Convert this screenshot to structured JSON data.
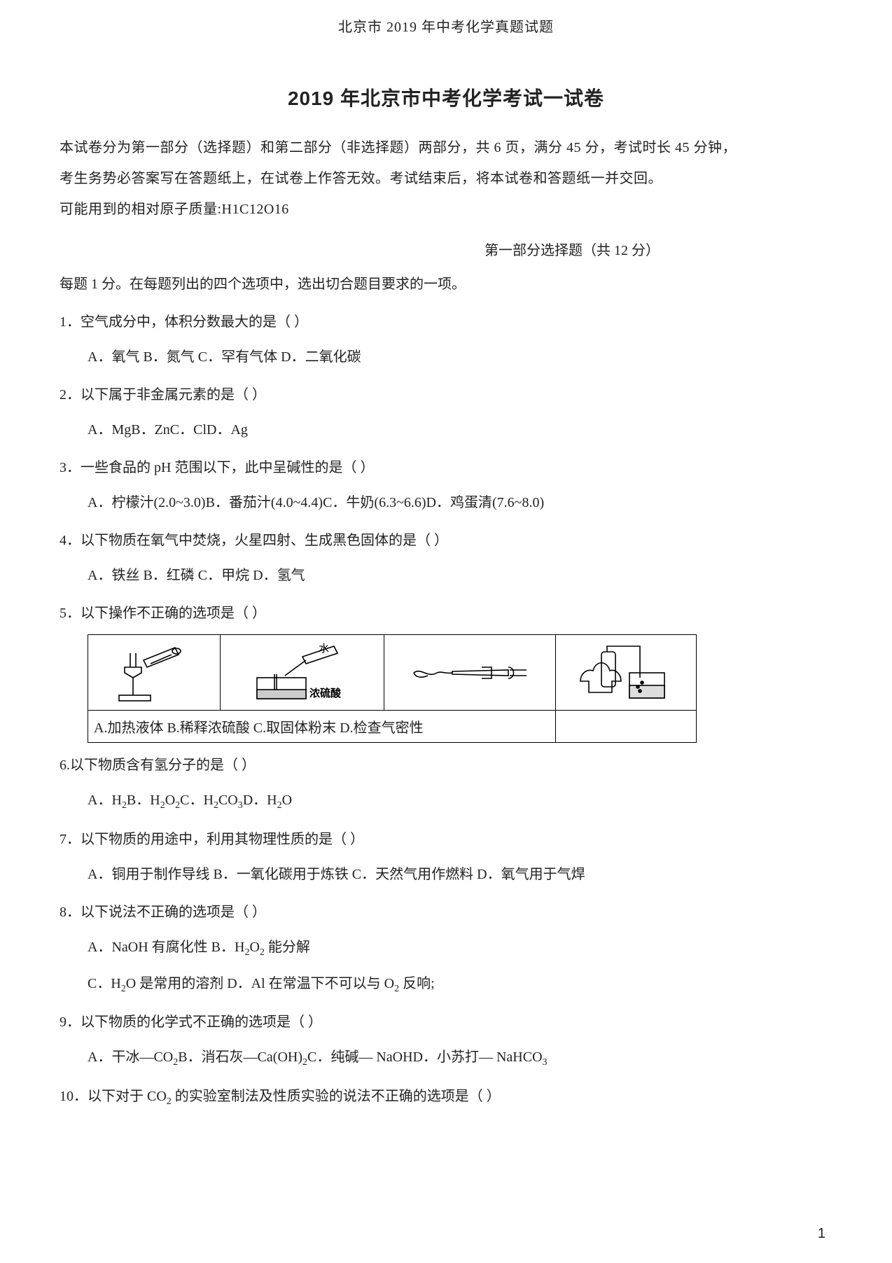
{
  "header": "北京市 2019 年中考化学真题试题",
  "title": "2019 年北京市中考化学考试一试卷",
  "intro": {
    "line1": "本试卷分为第一部分（选择题）和第二部分（非选择题）两部分，共 6 页，满分 45 分，考试时长 45 分钟，",
    "line2": "考生务势必答案写在答题纸上，在试卷上作答无效。考试结束后，将本试卷和答题纸一并交回。",
    "line3": "可能用到的相对原子质量:H1C12O16"
  },
  "section_heading": "第一部分选择题（共 12 分）",
  "instruction": "每题 1 分。在每题列出的四个选项中，选出切合题目要求的一项。",
  "questions": {
    "q1": {
      "text": "1．空气成分中，体积分数最大的是（ ）",
      "opts": "A．氧气 B．氮气 C．罕有气体 D．二氧化碳"
    },
    "q2": {
      "text": "2．以下属于非金属元素的是（ ）",
      "opts": "A．MgB．ZnC．ClD．Ag"
    },
    "q3": {
      "text": "3．一些食品的 pH 范围以下，此中呈碱性的是（ ）",
      "opts": "A．柠檬汁(2.0~3.0)B．番茄汁(4.0~4.4)C．牛奶(6.3~6.6)D．鸡蛋清(7.6~8.0)"
    },
    "q4": {
      "text": "4．以下物质在氧气中焚烧，火星四射、生成黑色固体的是（ ）",
      "opts": "A．铁丝 B．红磷 C．甲烷 D．氢气"
    },
    "q5": {
      "text": "5．以下操作不正确的选项是（ ）",
      "caption": "A.加热液体 B.稀释浓硫酸 C.取固体粉末 D.检查气密性",
      "labels": {
        "b_water": "水",
        "b_acid": "浓硫酸"
      }
    },
    "q6": {
      "text": "6.以下物质含有氢分子的是（ ）",
      "opts_html": "A．H<sub>2</sub>B．H<sub>2</sub>O<sub>2</sub>C．H<sub>2</sub>CO<sub>3</sub>D．H<sub>2</sub>O"
    },
    "q7": {
      "text": "7．以下物质的用途中，利用其物理性质的是（ ）",
      "opts": "A．铜用于制作导线 B．一氧化碳用于炼铁 C．天然气用作燃料 D．氧气用于气焊"
    },
    "q8": {
      "text": "8．以下说法不正确的选项是（ ）",
      "opts1_html": "A．NaOH 有腐化性 B．H<sub>2</sub>O<sub>2</sub> 能分解",
      "opts2_html": "C．H<sub>2</sub>O 是常用的溶剂 D．Al 在常温下不可以与 O<sub>2</sub> 反响;"
    },
    "q9": {
      "text": "9．以下物质的化学式不正确的选项是（ ）",
      "opts_html": "A．干冰—CO<sub>2</sub>B．消石灰—Ca(OH)<sub>2</sub>C．纯碱— NaOHD．小苏打— NaHCO<sub>3</sub>"
    },
    "q10": {
      "text_html": "10．以下对于 CO<sub>2</sub> 的实验室制法及性质实验的说法不正确的选项是（ ）"
    }
  },
  "page_num": "1",
  "colors": {
    "text": "#222222",
    "border": "#000000",
    "bg": "#ffffff"
  }
}
